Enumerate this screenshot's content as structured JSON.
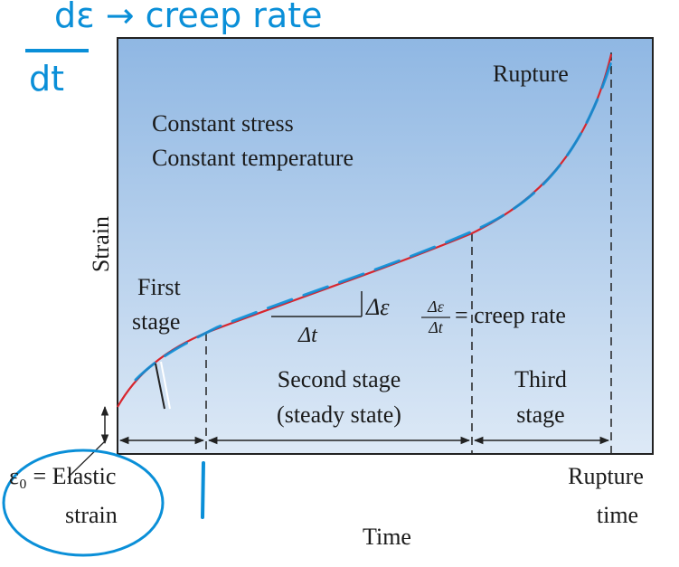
{
  "annotation": {
    "top_handwriting": "dε → creep rate",
    "derivative": {
      "numerator": "dε",
      "denominator": "dt"
    }
  },
  "diagram": {
    "colors": {
      "plot_top": "#8fb7e3",
      "plot_bottom": "#dde9f6",
      "curve": "#d8262e",
      "handwriting": "#0a8fd8",
      "border": "#222222"
    },
    "labels": {
      "rupture": "Rupture",
      "conditions": [
        "Constant stress",
        "Constant temperature"
      ],
      "y_axis": "Strain",
      "x_axis": "Time",
      "first_stage": [
        "First",
        "stage"
      ],
      "delta_epsilon": "Δε",
      "delta_t": "Δt",
      "fraction_num": "Δε",
      "fraction_den": "Δt",
      "creep_rate": "= creep rate",
      "second_stage": [
        "Second stage",
        "(steady state)"
      ],
      "third_stage": [
        "Third",
        "stage"
      ],
      "elastic_strain": [
        "ε₀ = Elastic",
        "strain"
      ],
      "rupture_time": [
        "Rupture",
        "time"
      ]
    }
  }
}
